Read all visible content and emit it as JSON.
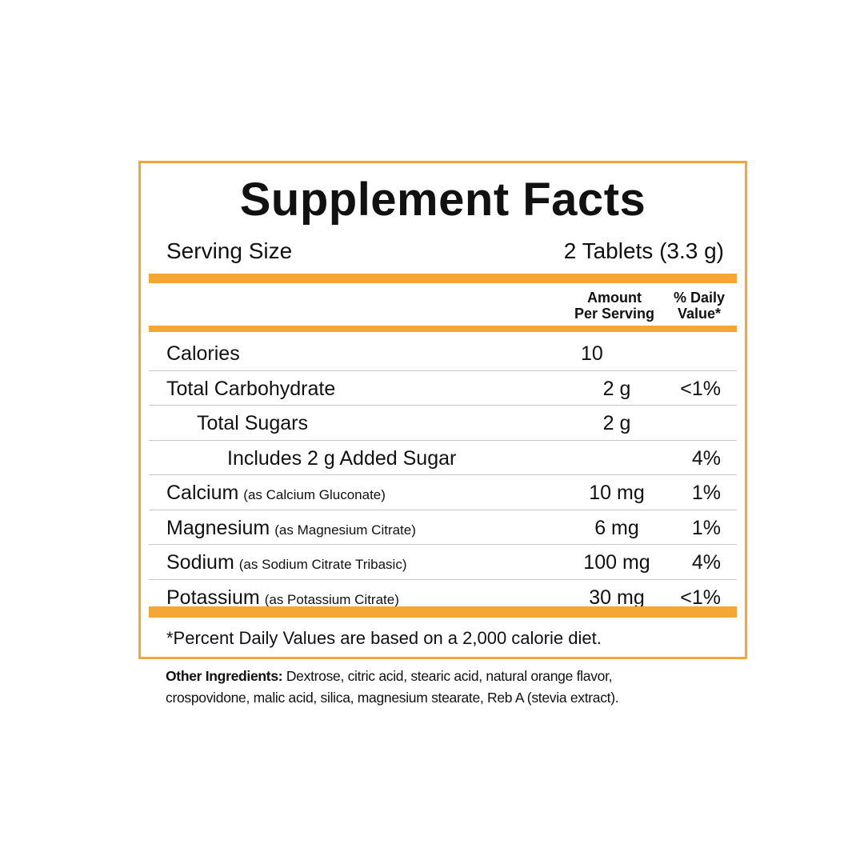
{
  "panel": {
    "title": "Supplement Facts",
    "serving_label": "Serving Size",
    "serving_value": "2 Tablets (3.3 g)",
    "header": {
      "amount_line1": "Amount",
      "amount_line2": "Per Serving",
      "dv_line1": "% Daily",
      "dv_line2": "Value*"
    },
    "rows": [
      {
        "name": "Calories",
        "source": "",
        "amount": "10",
        "dv": ""
      },
      {
        "name": "Total Carbohydrate",
        "source": "",
        "amount": "2 g",
        "dv": "<1%"
      },
      {
        "name": "Total Sugars",
        "source": "",
        "amount": "2 g",
        "dv": ""
      },
      {
        "name": "Includes 2 g Added Sugar",
        "source": "",
        "amount": "",
        "dv": "4%"
      },
      {
        "name": "Calcium",
        "source": "(as Calcium Gluconate)",
        "amount": "10 mg",
        "dv": "1%"
      },
      {
        "name": "Magnesium",
        "source": "(as Magnesium Citrate)",
        "amount": "6 mg",
        "dv": "1%"
      },
      {
        "name": "Sodium",
        "source": "(as Sodium Citrate Tribasic)",
        "amount": "100 mg",
        "dv": "4%"
      },
      {
        "name": "Potassium",
        "source": "(as Potassium Citrate)",
        "amount": "30 mg",
        "dv": "<1%"
      }
    ],
    "footnote": "*Percent Daily Values are based on a 2,000 calorie diet."
  },
  "other_ingredients": {
    "label": "Other Ingredients:",
    "text": "Dextrose, citric acid, stearic acid, natural orange flavor, crospovidone, malic acid, silica, magnesium stearate, Reb A (stevia extract)."
  },
  "colors": {
    "accent": "#f6a634",
    "text": "#111111",
    "divider": "#c8c8c8"
  }
}
